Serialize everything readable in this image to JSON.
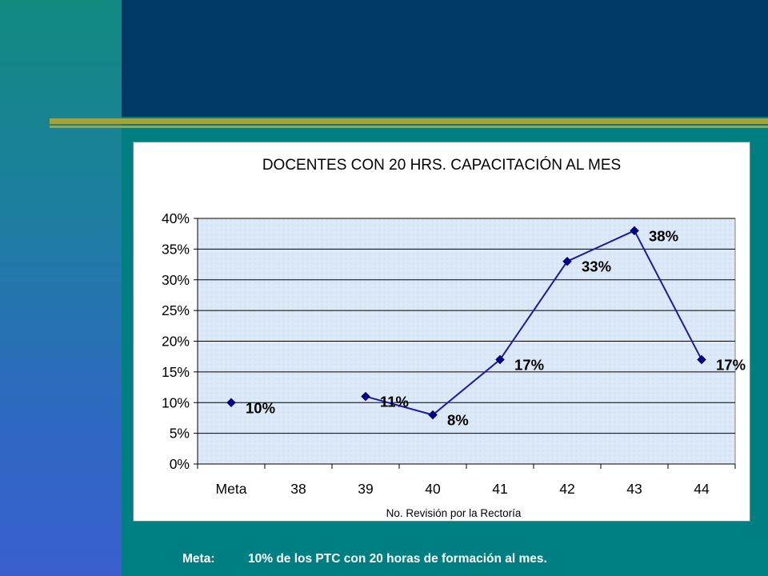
{
  "slide": {
    "colors": {
      "left_band": "#2f67c4",
      "header": "#003a64",
      "main": "#007f82",
      "rule": "#a4a23a"
    }
  },
  "footer": {
    "label": "Meta:",
    "text": "10% de los PTC con 20 horas de formación al mes."
  },
  "chart_data": {
    "type": "line",
    "title": "DOCENTES CON 20 HRS. CAPACITACIÓN AL MES",
    "xlabel": "No. Revisión por la Rectoría",
    "ylabel": "",
    "categories": [
      "Meta",
      "38",
      "39",
      "40",
      "41",
      "42",
      "43",
      "44"
    ],
    "points": [
      {
        "category": "Meta",
        "value": 10,
        "label": "10%"
      },
      {
        "category": "39",
        "value": 11,
        "label": "11%"
      },
      {
        "category": "40",
        "value": 8,
        "label": "8%"
      },
      {
        "category": "41",
        "value": 17,
        "label": "17%"
      },
      {
        "category": "42",
        "value": 33,
        "label": "33%"
      },
      {
        "category": "43",
        "value": 38,
        "label": "38%"
      },
      {
        "category": "44",
        "value": 17,
        "label": "17%"
      }
    ],
    "connected_from": "39",
    "ylim": [
      0,
      40
    ],
    "yticks": [
      0,
      5,
      10,
      15,
      20,
      25,
      30,
      35,
      40
    ],
    "ytick_labels": [
      "0%",
      "5%",
      "10%",
      "15%",
      "20%",
      "25%",
      "30%",
      "35%",
      "40%"
    ],
    "grid": true,
    "legend": "none",
    "colors": {
      "line": "#1a1aa6",
      "marker": "#00008b",
      "plot_bg": "#dbe8f7",
      "gridline": "#000000"
    }
  }
}
